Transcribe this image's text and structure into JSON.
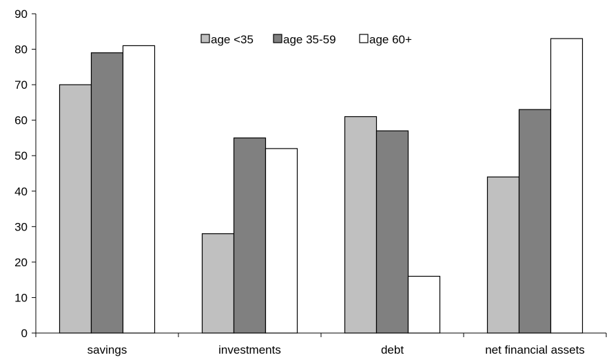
{
  "chart_data": {
    "type": "bar",
    "categories": [
      "savings",
      "investments",
      "debt",
      "net financial assets"
    ],
    "series": [
      {
        "name": "age <35",
        "values": [
          70,
          28,
          61,
          44
        ],
        "color": "#c0c0c0"
      },
      {
        "name": "age 35-59",
        "values": [
          79,
          55,
          57,
          63
        ],
        "color": "#808080"
      },
      {
        "name": "age 60+",
        "values": [
          81,
          52,
          16,
          83
        ],
        "color": "#ffffff"
      }
    ],
    "ylim": [
      0,
      90
    ],
    "yticks": [
      0,
      10,
      20,
      30,
      40,
      50,
      60,
      70,
      80,
      90
    ],
    "grid": false,
    "legend_position": "top-center"
  }
}
